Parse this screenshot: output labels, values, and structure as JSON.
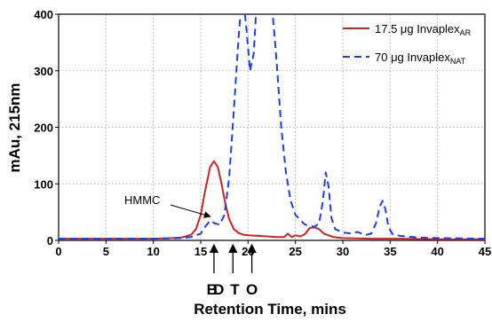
{
  "chart_data": {
    "type": "line",
    "xlabel": "Retention Time, mins",
    "ylabel": "mAu, 215nm",
    "xlim": [
      0,
      45
    ],
    "ylim": [
      0,
      400
    ],
    "xticks": [
      0,
      5,
      10,
      15,
      20,
      25,
      30,
      35,
      40,
      45
    ],
    "yticks": [
      0,
      100,
      200,
      300,
      400
    ],
    "grid": "dotted",
    "legend_position": "top-right",
    "series": [
      {
        "name_main": "17.5 μg Invaplex",
        "name_sub": "AR",
        "color": "#d42020",
        "style": "solid",
        "x": [
          0,
          5,
          10,
          12,
          13,
          14,
          14.5,
          15,
          15.5,
          16,
          16.4,
          16.8,
          17.2,
          17.6,
          18,
          18.5,
          19,
          19.5,
          20,
          21,
          22,
          23,
          23.8,
          24.2,
          24.6,
          25,
          25.5,
          26,
          26.5,
          27,
          27.5,
          28,
          29,
          30,
          33,
          36,
          40,
          45
        ],
        "y": [
          3,
          3,
          3,
          4,
          5,
          10,
          20,
          45,
          90,
          130,
          140,
          130,
          100,
          65,
          38,
          20,
          13,
          10,
          9,
          8,
          7,
          6,
          6,
          12,
          6,
          9,
          7,
          11,
          22,
          23,
          20,
          12,
          6,
          4,
          3,
          3,
          2,
          2
        ]
      },
      {
        "name_main": "70 μg Invaplex",
        "name_sub": "NAT",
        "color": "#1a3ff0",
        "style": "dashed",
        "x": [
          0,
          5,
          10,
          13,
          14,
          15,
          15.5,
          16,
          16.5,
          17,
          17.5,
          18,
          18.5,
          19,
          19.4,
          19.8,
          20.2,
          20.6,
          21,
          21.5,
          22,
          22.5,
          23,
          23.5,
          24,
          24.5,
          25,
          26,
          27,
          27.5,
          27.9,
          28.2,
          28.5,
          28.8,
          29.2,
          30,
          31,
          31.5,
          32,
          32.5,
          33,
          33.5,
          33.9,
          34.2,
          34.5,
          34.8,
          35.2,
          36,
          38,
          40,
          45
        ],
        "y": [
          3,
          3,
          3,
          4,
          6,
          12,
          25,
          35,
          30,
          28,
          45,
          110,
          230,
          360,
          440,
          380,
          300,
          330,
          450,
          450,
          450,
          420,
          320,
          200,
          120,
          70,
          45,
          28,
          24,
          30,
          70,
          120,
          95,
          40,
          20,
          14,
          12,
          15,
          12,
          10,
          12,
          30,
          60,
          70,
          55,
          25,
          12,
          8,
          5,
          4,
          3
        ]
      }
    ],
    "annotations": [
      {
        "label": "HMMC",
        "x": 16.2,
        "y": 36
      }
    ],
    "markers": [
      {
        "label": "B",
        "x": 16.2
      },
      {
        "label": "D",
        "x": 16.9
      },
      {
        "label": "T",
        "x": 18.6
      },
      {
        "label": "O",
        "x": 20.4
      }
    ]
  }
}
